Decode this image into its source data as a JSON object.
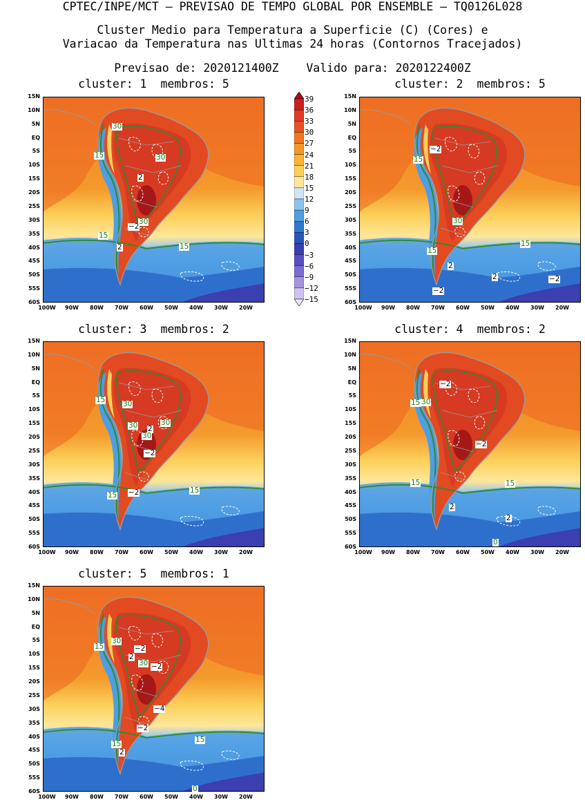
{
  "header": {
    "line1": "CPTEC/INPE/MCT – PREVISAO DE TEMPO GLOBAL POR ENSEMBLE – TQ0126L028",
    "line2": "Cluster Medio para Temperatura a Superficie (C) (Cores) e",
    "line3": "Variacao da Temperatura nas Ultimas 24 horas (Contornos Tracejados)",
    "forecast_label": "Previsao de: 2020121400Z",
    "valid_label": "Valido para: 2020122400Z"
  },
  "panels": [
    {
      "cluster": "cluster: 1",
      "members": "membros: 5",
      "labels": [
        {
          "t": "30",
          "c": "g"
        },
        {
          "t": "15",
          "c": "g"
        },
        {
          "t": "30",
          "c": "g"
        },
        {
          "t": "2",
          "c": "k"
        },
        {
          "t": "30",
          "c": "g"
        },
        {
          "t": "−2",
          "c": "k"
        },
        {
          "t": "15",
          "c": "g"
        },
        {
          "t": "2",
          "c": "k"
        },
        {
          "t": "15",
          "c": "g"
        }
      ]
    },
    {
      "cluster": "cluster: 2",
      "members": "membros: 5",
      "labels": [
        {
          "t": "−2",
          "c": "k"
        },
        {
          "t": "15",
          "c": "g"
        },
        {
          "t": "30",
          "c": "g"
        },
        {
          "t": "15",
          "c": "g"
        },
        {
          "t": "15",
          "c": "g"
        },
        {
          "t": "2",
          "c": "k"
        },
        {
          "t": "2",
          "c": "k"
        },
        {
          "t": "−2",
          "c": "k"
        },
        {
          "t": "−2",
          "c": "k"
        }
      ]
    },
    {
      "cluster": "cluster: 3",
      "members": "membros: 2",
      "labels": [
        {
          "t": "15",
          "c": "g"
        },
        {
          "t": "30",
          "c": "g"
        },
        {
          "t": "30",
          "c": "g"
        },
        {
          "t": "30",
          "c": "g"
        },
        {
          "t": "2",
          "c": "k"
        },
        {
          "t": "30",
          "c": "g"
        },
        {
          "t": "−2",
          "c": "k"
        },
        {
          "t": "−2",
          "c": "k"
        },
        {
          "t": "15",
          "c": "g"
        },
        {
          "t": "15",
          "c": "g"
        }
      ]
    },
    {
      "cluster": "cluster: 4",
      "members": "membros: 2",
      "labels": [
        {
          "t": "−2",
          "c": "k"
        },
        {
          "t": "15",
          "c": "g"
        },
        {
          "t": "30",
          "c": "g"
        },
        {
          "t": "−2",
          "c": "k"
        },
        {
          "t": "15",
          "c": "g"
        },
        {
          "t": "15",
          "c": "g"
        },
        {
          "t": "2",
          "c": "k"
        },
        {
          "t": "2",
          "c": "k"
        },
        {
          "t": "0",
          "c": "g"
        }
      ]
    },
    {
      "cluster": "cluster: 5",
      "members": "membros: 1",
      "labels": [
        {
          "t": "30",
          "c": "g"
        },
        {
          "t": "15",
          "c": "g"
        },
        {
          "t": "−2",
          "c": "k"
        },
        {
          "t": "2",
          "c": "k"
        },
        {
          "t": "30",
          "c": "g"
        },
        {
          "t": "−2",
          "c": "k"
        },
        {
          "t": "−4",
          "c": "k"
        },
        {
          "t": "−2",
          "c": "k"
        },
        {
          "t": "15",
          "c": "g"
        },
        {
          "t": "2",
          "c": "k"
        },
        {
          "t": "15",
          "c": "g"
        },
        {
          "t": "0",
          "c": "g"
        }
      ]
    }
  ],
  "lat_labels": [
    "15N",
    "10N",
    "5N",
    "EQ",
    "5S",
    "10S",
    "15S",
    "20S",
    "25S",
    "30S",
    "35S",
    "40S",
    "45S",
    "50S",
    "55S",
    "60S"
  ],
  "lon_labels": [
    "100W",
    "90W",
    "80W",
    "70W",
    "60W",
    "50W",
    "40W",
    "30W",
    "20W"
  ],
  "colorbar": {
    "labels": [
      "39",
      "36",
      "33",
      "30",
      "27",
      "24",
      "21",
      "18",
      "15",
      "12",
      "9",
      "6",
      "3",
      "0",
      "−3",
      "−6",
      "−9",
      "−12",
      "−15"
    ],
    "colors": [
      "#a50f15",
      "#c8201e",
      "#e03a22",
      "#ec5020",
      "#f27524",
      "#f69728",
      "#fab433",
      "#fcd05a",
      "#fde79b",
      "#cfe6f5",
      "#8fc3ee",
      "#4f9de3",
      "#2f78cf",
      "#2a55bb",
      "#3b3fb0",
      "#5a4fc4",
      "#7a6cd4",
      "#a595e0",
      "#cdc3ee",
      "#ece8f8"
    ],
    "contour_green": "#2e8b2e"
  }
}
